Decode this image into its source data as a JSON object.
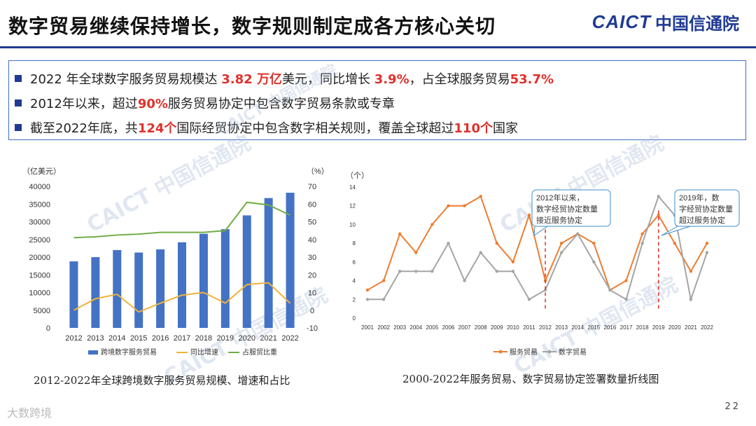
{
  "page_title": "数字贸易继续保持增长，数字规则制定成各方核心关切",
  "logo": {
    "en": "CAICT",
    "cn": "中国信通院"
  },
  "bullets": [
    [
      {
        "t": "2022 年全球数字服务贸易规模达 "
      },
      {
        "t": "3.82 万亿",
        "r": true
      },
      {
        "t": "美元，同比增长 "
      },
      {
        "t": "3.9%",
        "r": true
      },
      {
        "t": "，占全球服务贸易"
      },
      {
        "t": "53.7%",
        "r": true
      }
    ],
    [
      {
        "t": "2012年以来，超过"
      },
      {
        "t": "90%",
        "r": true
      },
      {
        "t": "服务贸易协定中包含数字贸易条款或专章"
      }
    ],
    [
      {
        "t": "截至2022年底，共"
      },
      {
        "t": "124个",
        "r": true
      },
      {
        "t": "国际经贸协定中包含数字相关规则，覆盖全球超过"
      },
      {
        "t": "110个",
        "r": true
      },
      {
        "t": "国家"
      }
    ]
  ],
  "watermark_text": "CAICT 中国信通院",
  "footer_logo": "大数跨境",
  "page_number": "22",
  "colors": {
    "brand": "#1f3a93",
    "bar": "#4472c4",
    "growth": "#f0b23c",
    "share": "#70ad47",
    "service": "#ed7d31",
    "digital": "#a5a5a5",
    "highlight": "#e0302a"
  },
  "chart_data": [
    {
      "type": "bar",
      "caption": "2012-2022年全球跨境数字服务贸易规模、增速和占比",
      "unit_left": "（亿美元）",
      "unit_right": "（%）",
      "categories": [
        "2012",
        "2013",
        "2014",
        "2015",
        "2016",
        "2017",
        "2018",
        "2019",
        "2020",
        "2021",
        "2022"
      ],
      "y_left_ticks": [
        "0",
        "5000",
        "10000",
        "15000",
        "20000",
        "25000",
        "30000",
        "35000",
        "40000"
      ],
      "y_right_ticks": [
        "-10",
        "0",
        "10",
        "20",
        "30",
        "40",
        "50",
        "60",
        "70"
      ],
      "ylim_left": [
        0,
        40000
      ],
      "ylim_right": [
        -10,
        70
      ],
      "series": [
        {
          "name": "跨境数字服务贸易",
          "kind": "bar",
          "axis": "left",
          "values": [
            18800,
            20000,
            22000,
            21300,
            22200,
            24200,
            26600,
            27900,
            31800,
            36700,
            38200
          ]
        },
        {
          "name": "同比增速",
          "kind": "line",
          "axis": "right",
          "values": [
            0,
            6.5,
            9,
            -1,
            4,
            8.5,
            10,
            4,
            14.5,
            15.5,
            3.9
          ]
        },
        {
          "name": "占服贸比重",
          "kind": "line",
          "axis": "right",
          "values": [
            41,
            41.5,
            42.5,
            43,
            44,
            44,
            44,
            45,
            61,
            59.5,
            53.7
          ]
        }
      ]
    },
    {
      "type": "line",
      "caption": "2000-2022年服务贸易、数字贸易协定签署数量折线图",
      "unit": "（个）",
      "categories": [
        "2001",
        "2002",
        "2003",
        "2004",
        "2005",
        "2006",
        "2007",
        "2008",
        "2009",
        "2010",
        "2011",
        "2012",
        "2013",
        "2014",
        "2015",
        "2016",
        "2017",
        "2018",
        "2019",
        "2020",
        "2021",
        "2022"
      ],
      "y_ticks": [
        "0",
        "2",
        "4",
        "6",
        "8",
        "10",
        "12",
        "14"
      ],
      "ylim": [
        0,
        14
      ],
      "series": [
        {
          "name": "服务贸易",
          "values": [
            3,
            4,
            9,
            7,
            10,
            12,
            12,
            13,
            8,
            6,
            11,
            4,
            8,
            9,
            8,
            3,
            4,
            9,
            11,
            8,
            5,
            8
          ]
        },
        {
          "name": "数字贸易",
          "values": [
            2,
            2,
            5,
            5,
            5,
            8,
            4,
            7,
            5,
            5,
            2,
            3,
            7,
            9,
            6,
            3,
            2,
            8,
            13,
            11,
            2,
            7
          ]
        }
      ],
      "annotations": [
        {
          "text": "2012年以来，数字经贸协定数量接近服务协定",
          "year": "2012"
        },
        {
          "text": "2019年，数字经贸协定数量超过服务协定",
          "year": "2019"
        }
      ]
    }
  ]
}
